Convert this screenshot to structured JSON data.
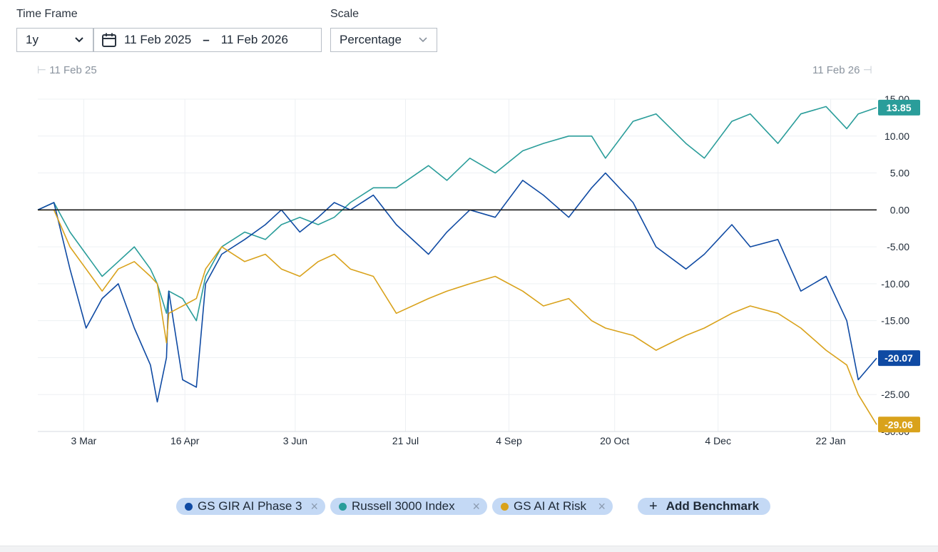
{
  "controls": {
    "time_frame_label": "Time Frame",
    "time_frame_value": "1y",
    "date_from": "11 Feb 2025",
    "date_separator": "–",
    "date_to": "11 Feb 2026",
    "scale_label": "Scale",
    "scale_value": "Percentage"
  },
  "range": {
    "start": "11 Feb 25",
    "end": "11 Feb 26"
  },
  "chart_data": {
    "type": "line",
    "title": "",
    "xlabel": "",
    "ylabel": "",
    "ylim": [
      -30,
      15
    ],
    "x_ticks": [
      "3 Mar",
      "16 Apr",
      "3 Jun",
      "21 Jul",
      "4 Sep",
      "20 Oct",
      "4 Dec",
      "22 Jan"
    ],
    "y_ticks": [
      "15.00",
      "10.00",
      "5.00",
      "0.00",
      "-5.00",
      "-10.00",
      "-15.00",
      "-20.00",
      "-25.00",
      "-30.00"
    ],
    "baseline": 0,
    "series": [
      {
        "name": "Russell 3000 Index",
        "color": "#2a9d9a",
        "last_label": "13.85",
        "x": [
          "2025-02-11",
          "2025-02-18",
          "2025-02-25",
          "2025-03-04",
          "2025-03-11",
          "2025-03-18",
          "2025-03-25",
          "2025-04-01",
          "2025-04-04",
          "2025-04-08",
          "2025-04-09",
          "2025-04-15",
          "2025-04-21",
          "2025-04-25",
          "2025-05-02",
          "2025-05-12",
          "2025-05-21",
          "2025-05-28",
          "2025-06-05",
          "2025-06-13",
          "2025-06-20",
          "2025-06-27",
          "2025-07-07",
          "2025-07-17",
          "2025-07-31",
          "2025-08-08",
          "2025-08-18",
          "2025-08-29",
          "2025-09-10",
          "2025-09-19",
          "2025-09-30",
          "2025-10-10",
          "2025-10-16",
          "2025-10-28",
          "2025-11-07",
          "2025-11-20",
          "2025-11-28",
          "2025-12-10",
          "2025-12-18",
          "2025-12-30",
          "2026-01-09",
          "2026-01-20",
          "2026-01-29",
          "2026-02-03",
          "2026-02-11"
        ],
        "y": [
          0,
          1,
          -3,
          -6,
          -9,
          -7,
          -5,
          -8,
          -10,
          -14,
          -11,
          -12,
          -15,
          -9,
          -5,
          -3,
          -4,
          -2,
          -1,
          -2,
          -1,
          1,
          3,
          3,
          6,
          4,
          7,
          5,
          8,
          9,
          10,
          10,
          7,
          12,
          13,
          9,
          7,
          12,
          13,
          9,
          13,
          14,
          11,
          13,
          13.85
        ]
      },
      {
        "name": "GS GIR AI Phase 3",
        "color": "#0f4aa3",
        "last_label": "-20.07",
        "x": [
          "2025-02-11",
          "2025-02-18",
          "2025-02-25",
          "2025-03-04",
          "2025-03-11",
          "2025-03-18",
          "2025-03-25",
          "2025-04-01",
          "2025-04-04",
          "2025-04-08",
          "2025-04-09",
          "2025-04-15",
          "2025-04-21",
          "2025-04-25",
          "2025-05-02",
          "2025-05-12",
          "2025-05-21",
          "2025-05-28",
          "2025-06-05",
          "2025-06-13",
          "2025-06-20",
          "2025-06-27",
          "2025-07-07",
          "2025-07-17",
          "2025-07-31",
          "2025-08-08",
          "2025-08-18",
          "2025-08-29",
          "2025-09-10",
          "2025-09-19",
          "2025-09-30",
          "2025-10-10",
          "2025-10-16",
          "2025-10-28",
          "2025-11-07",
          "2025-11-20",
          "2025-11-28",
          "2025-12-10",
          "2025-12-18",
          "2025-12-30",
          "2026-01-09",
          "2026-01-20",
          "2026-01-29",
          "2026-02-03",
          "2026-02-11"
        ],
        "y": [
          0,
          1,
          -8,
          -16,
          -12,
          -10,
          -16,
          -21,
          -26,
          -20,
          -11,
          -23,
          -24,
          -10,
          -6,
          -4,
          -2,
          0,
          -3,
          -1,
          1,
          0,
          2,
          -2,
          -6,
          -3,
          0,
          -1,
          4,
          2,
          -1,
          3,
          5,
          1,
          -5,
          -8,
          -6,
          -2,
          -5,
          -4,
          -11,
          -9,
          -15,
          -23,
          -20.07
        ]
      },
      {
        "name": "GS AI At Risk",
        "color": "#d9a21b",
        "last_label": "-29.06",
        "x": [
          "2025-02-11",
          "2025-02-18",
          "2025-02-25",
          "2025-03-04",
          "2025-03-11",
          "2025-03-18",
          "2025-03-25",
          "2025-04-01",
          "2025-04-04",
          "2025-04-08",
          "2025-04-09",
          "2025-04-15",
          "2025-04-21",
          "2025-04-25",
          "2025-05-02",
          "2025-05-12",
          "2025-05-21",
          "2025-05-28",
          "2025-06-05",
          "2025-06-13",
          "2025-06-20",
          "2025-06-27",
          "2025-07-07",
          "2025-07-17",
          "2025-07-31",
          "2025-08-08",
          "2025-08-18",
          "2025-08-29",
          "2025-09-10",
          "2025-09-19",
          "2025-09-30",
          "2025-10-10",
          "2025-10-16",
          "2025-10-28",
          "2025-11-07",
          "2025-11-20",
          "2025-11-28",
          "2025-12-10",
          "2025-12-18",
          "2025-12-30",
          "2026-01-09",
          "2026-01-20",
          "2026-01-29",
          "2026-02-03",
          "2026-02-11"
        ],
        "y": [
          0,
          0,
          -5,
          -8,
          -11,
          -8,
          -7,
          -9,
          -10,
          -18,
          -14,
          -13,
          -12,
          -8,
          -5,
          -7,
          -6,
          -8,
          -9,
          -7,
          -6,
          -8,
          -9,
          -14,
          -12,
          -11,
          -10,
          -9,
          -11,
          -13,
          -12,
          -15,
          -16,
          -17,
          -19,
          -17,
          -16,
          -14,
          -13,
          -14,
          -16,
          -19,
          -21,
          -25,
          -29.06
        ]
      }
    ]
  },
  "legend": {
    "items": [
      {
        "label": "GS GIR AI Phase 3",
        "color": "#0f4aa3"
      },
      {
        "label": "Russell 3000 Index",
        "color": "#2a9d9a"
      },
      {
        "label": "GS AI At Risk",
        "color": "#d9a21b"
      }
    ],
    "remove_symbol": "×",
    "add_symbol": "+",
    "add_label": "Add Benchmark"
  }
}
